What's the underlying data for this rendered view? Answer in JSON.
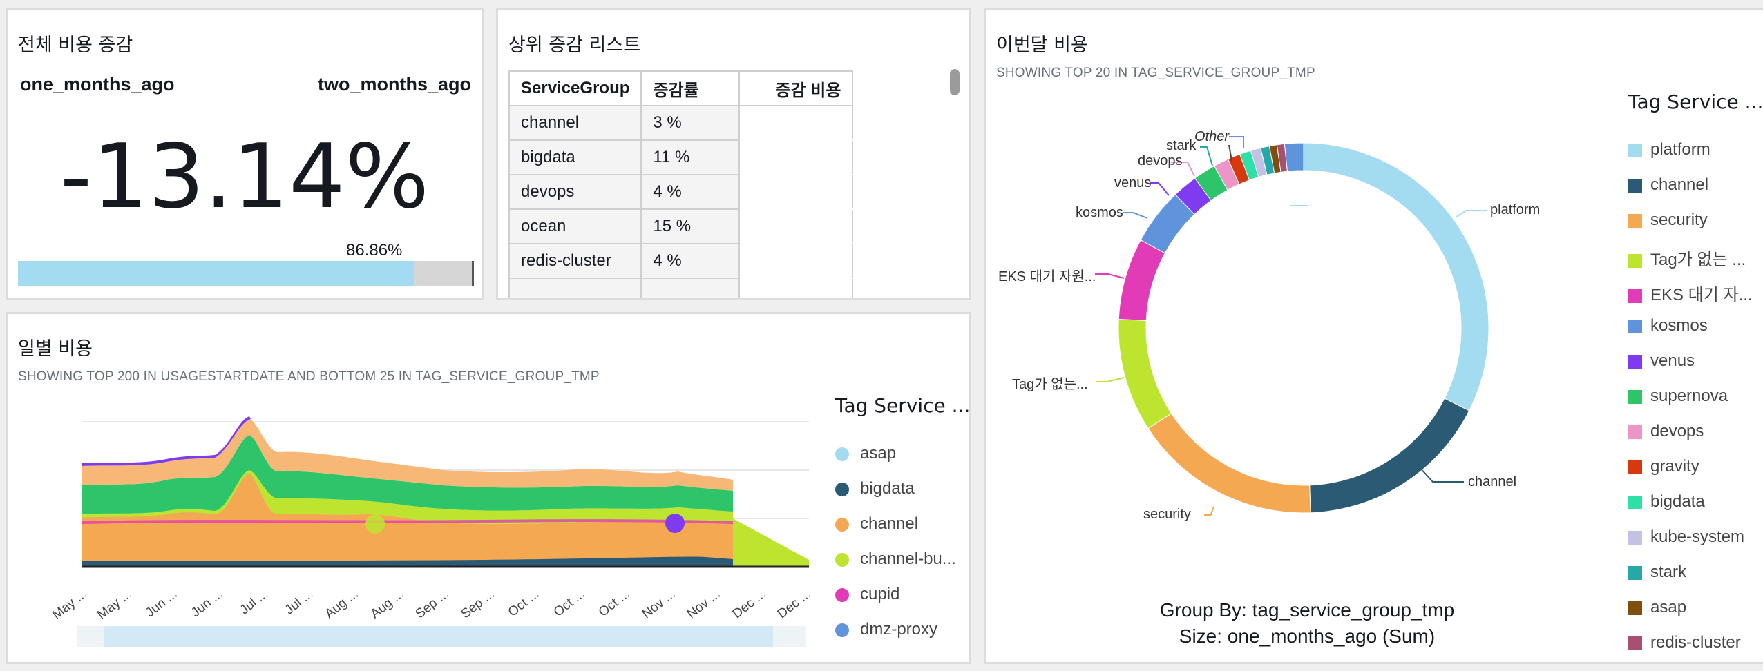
{
  "kpi": {
    "title": "전체 비용 증감",
    "left_label": "one_months_ago",
    "right_label": "two_months_ago",
    "value": "-13.14%",
    "bar_percent_label": "86.86%",
    "bar_fraction": 0.8686
  },
  "top_list": {
    "title": "상위 증감 리스트",
    "columns": [
      "ServiceGroup",
      "증감률",
      "증감 비용"
    ],
    "rows": [
      {
        "group": "channel",
        "rate": "3 %",
        "cost": ""
      },
      {
        "group": "bigdata",
        "rate": "11 %",
        "cost": ""
      },
      {
        "group": "devops",
        "rate": "4 %",
        "cost": ""
      },
      {
        "group": "ocean",
        "rate": "15 %",
        "cost": ""
      },
      {
        "group": "redis-cluster",
        "rate": "4 %",
        "cost": ""
      }
    ]
  },
  "daily": {
    "title": "일별 비용",
    "subtitle": "SHOWING TOP 200 IN USAGESTARTDATE AND BOTTOM 25 IN TAG_SERVICE_GROUP_TMP",
    "legend_title": "Tag Service ...",
    "legend": [
      {
        "label": "asap",
        "color": "#a3dcf0"
      },
      {
        "label": "bigdata",
        "color": "#2a5a74"
      },
      {
        "label": "channel",
        "color": "#f5a852"
      },
      {
        "label": "channel-bu...",
        "color": "#bde42f"
      },
      {
        "label": "cupid",
        "color": "#e23bb7"
      },
      {
        "label": "dmz-proxy",
        "color": "#5f93dc"
      }
    ],
    "x_labels": [
      "May ...",
      "May ...",
      "Jun ...",
      "Jun ...",
      "Jul ...",
      "Jul ...",
      "Aug ...",
      "Aug ...",
      "Sep ...",
      "Sep ...",
      "Oct ...",
      "Oct ...",
      "Oct ...",
      "Nov ...",
      "Nov ...",
      "Dec ...",
      "Dec ..."
    ]
  },
  "monthly": {
    "title": "이번달 비용",
    "subtitle": "SHOWING TOP 20 IN TAG_SERVICE_GROUP_TMP",
    "legend_title": "Tag Service ...",
    "legend": [
      {
        "label": "platform",
        "color": "#a3dcf0"
      },
      {
        "label": "channel",
        "color": "#2a5a74"
      },
      {
        "label": "security",
        "color": "#f5a852"
      },
      {
        "label": "Tag가 없는 ...",
        "color": "#bde42f"
      },
      {
        "label": "EKS 대기 자...",
        "color": "#e23bb7"
      },
      {
        "label": "kosmos",
        "color": "#5f93dc"
      },
      {
        "label": "venus",
        "color": "#7e3bef"
      },
      {
        "label": "supernova",
        "color": "#2ec46a"
      },
      {
        "label": "devops",
        "color": "#ec96c8"
      },
      {
        "label": "gravity",
        "color": "#d8380d"
      },
      {
        "label": "bigdata",
        "color": "#2ee0a8"
      },
      {
        "label": "kube-system",
        "color": "#c4c2e4"
      },
      {
        "label": "stark",
        "color": "#27a8a8"
      },
      {
        "label": "asap",
        "color": "#7f4f10"
      },
      {
        "label": "redis-cluster",
        "color": "#a8506f"
      }
    ],
    "pie_labels": [
      "platform",
      "channel",
      "security",
      "Tag가 없는...",
      "EKS 대기 자원...",
      "kosmos",
      "venus",
      "devops",
      "stark",
      "Other"
    ],
    "group_by": "Group By: tag_service_group_tmp",
    "size_by": "Size: one_months_ago (Sum)"
  },
  "chart_data": {
    "type": "pie",
    "title": "이번달 비용",
    "categories": [
      "platform",
      "channel",
      "security",
      "Tag가 없는 ...",
      "EKS 대기 자...",
      "kosmos",
      "venus",
      "supernova",
      "devops",
      "gravity",
      "bigdata",
      "kube-system",
      "stark",
      "asap",
      "redis-cluster",
      "Other"
    ],
    "values": [
      29.5,
      15.5,
      15.0,
      9.0,
      6.5,
      4.5,
      2.0,
      1.8,
      1.2,
      1.0,
      0.9,
      0.8,
      0.7,
      0.6,
      0.6,
      1.5
    ],
    "colors": [
      "#a3dcf0",
      "#2a5a74",
      "#f5a852",
      "#bde42f",
      "#e23bb7",
      "#5f93dc",
      "#7e3bef",
      "#2ec46a",
      "#ec96c8",
      "#d8380d",
      "#2ee0a8",
      "#c4c2e4",
      "#27a8a8",
      "#7f4f10",
      "#a8506f",
      "#5f93dc"
    ]
  }
}
